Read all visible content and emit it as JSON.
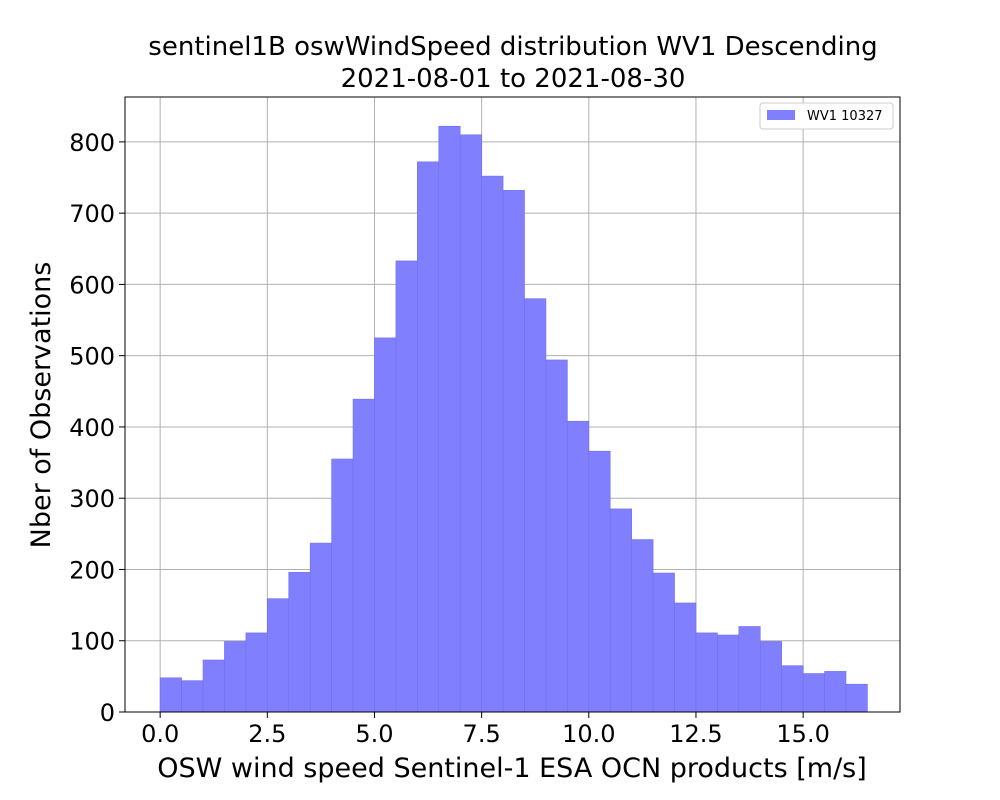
{
  "chart_data": {
    "type": "bar",
    "title": "sentinel1B oswWindSpeed distribution WV1 Descending",
    "subtitle": "2021-08-01 to 2021-08-30",
    "xlabel": "OSW wind speed Sentinel-1 ESA OCN products [m/s]",
    "ylabel": "Nber of Observations",
    "xlim": [
      -0.82,
      17.26
    ],
    "ylim": [
      0,
      863
    ],
    "x_ticks": [
      "0.0",
      "2.5",
      "5.0",
      "7.5",
      "10.0",
      "12.5",
      "15.0"
    ],
    "x_tick_values": [
      0,
      2.5,
      5,
      7.5,
      10,
      12.5,
      15
    ],
    "y_ticks": [
      "0",
      "100",
      "200",
      "300",
      "400",
      "500",
      "600",
      "700",
      "800"
    ],
    "y_tick_values": [
      0,
      100,
      200,
      300,
      400,
      500,
      600,
      700,
      800
    ],
    "grid": true,
    "legend_position": "top-right",
    "bin_edges": [
      0,
      0.5,
      1,
      1.5,
      2,
      2.5,
      3,
      3.5,
      4,
      4.5,
      5,
      5.5,
      6,
      6.5,
      7,
      7.5,
      8,
      8.5,
      9,
      9.5,
      10,
      10.5,
      11,
      11.5,
      12,
      12.5,
      13,
      13.5,
      14,
      14.5,
      15,
      15.5,
      16,
      16.5
    ],
    "series": [
      {
        "name": "WV1 10327",
        "color": "#8080ff",
        "values": [
          48,
          44,
          73,
          99,
          111,
          159,
          196,
          237,
          355,
          439,
          525,
          633,
          772,
          822,
          810,
          752,
          732,
          580,
          494,
          408,
          366,
          285,
          242,
          195,
          153,
          111,
          108,
          120,
          99,
          65,
          54,
          57,
          39
        ]
      }
    ]
  }
}
